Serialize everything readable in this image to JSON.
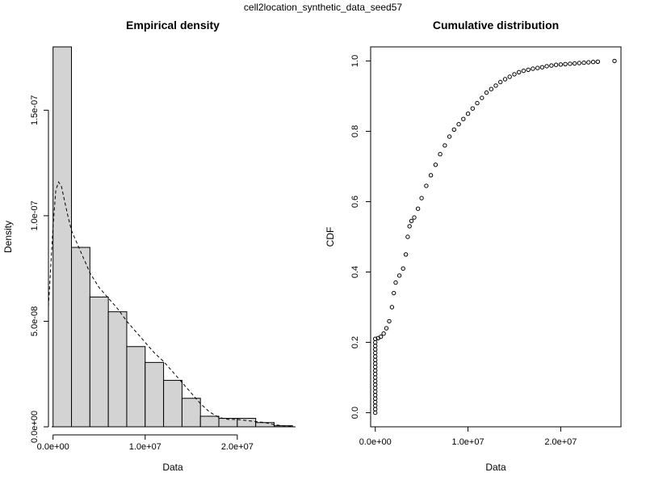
{
  "figure": {
    "main_title": "cell2location_synthetic_data_seed57"
  },
  "chart_data": [
    {
      "type": "bar",
      "title": "Empirical density",
      "xlabel": "Data",
      "ylabel": "Density",
      "xlim": [
        -500000,
        26500000
      ],
      "ylim": [
        0,
        1.8e-07
      ],
      "x_ticks": [
        0,
        10000000,
        20000000
      ],
      "x_tick_labels": [
        "0.0e+00",
        "1.0e+07",
        "2.0e+07"
      ],
      "y_ticks": [
        0,
        5e-08,
        1e-07,
        1.5e-07
      ],
      "y_tick_labels": [
        "0.0e+00",
        "5.0e-08",
        "1.0e-07",
        "1.5e-07"
      ],
      "bin_edges": [
        0,
        2000000,
        4000000,
        6000000,
        8000000,
        10000000,
        12000000,
        14000000,
        16000000,
        18000000,
        20000000,
        22000000,
        24000000,
        26000000
      ],
      "values": [
        1.8e-07,
        8.5e-08,
        6.15e-08,
        5.45e-08,
        3.8e-08,
        3.05e-08,
        2.2e-08,
        1.35e-08,
        5e-09,
        4e-09,
        4e-09,
        2e-09,
        5e-10
      ],
      "bar_color": "#d3d3d3",
      "density_curve": {
        "line_style": "dashed",
        "x": [
          -500000,
          0,
          300000,
          600000,
          900000,
          1200000,
          1600000,
          2000000,
          2500000,
          3000000,
          3500000,
          4000000,
          5000000,
          6000000,
          7000000,
          8000000,
          9000000,
          10000000,
          11000000,
          12000000,
          13000000,
          14000000,
          15000000,
          16000000,
          17000000,
          18000000,
          19000000,
          20000000,
          21000000,
          22000000,
          23000000,
          24000000,
          25000000,
          26000000
        ],
        "y": [
          5.7e-08,
          9.5e-08,
          1.12e-07,
          1.16e-07,
          1.14e-07,
          1.08e-07,
          1e-07,
          9.3e-08,
          8.8e-08,
          8.3e-08,
          7.8e-08,
          7.3e-08,
          6.6e-08,
          6.1e-08,
          5.6e-08,
          5e-08,
          4.5e-08,
          4e-08,
          3.5e-08,
          3.1e-08,
          2.6e-08,
          2.1e-08,
          1.6e-08,
          1.1e-08,
          7e-09,
          4.5e-09,
          3.5e-09,
          3.5e-09,
          3e-09,
          2.5e-09,
          2e-09,
          1e-09,
          5e-10,
          2e-10
        ]
      }
    },
    {
      "type": "scatter",
      "title": "Cumulative distribution",
      "xlabel": "Data",
      "ylabel": "CDF",
      "xlim": [
        -500000,
        26500000
      ],
      "ylim": [
        0,
        1
      ],
      "x_ticks": [
        0,
        10000000,
        20000000
      ],
      "x_tick_labels": [
        "0.0e+00",
        "1.0e+07",
        "2.0e+07"
      ],
      "y_ticks": [
        0,
        0.2,
        0.4,
        0.6,
        0.8,
        1.0
      ],
      "y_tick_labels": [
        "0.0",
        "0.2",
        "0.4",
        "0.6",
        "0.8",
        "1.0"
      ],
      "marker": "open-circle",
      "x": [
        0,
        0,
        0,
        0,
        0,
        0,
        0,
        0,
        0,
        0,
        0,
        0,
        0,
        0,
        0,
        0,
        0,
        0,
        0,
        0,
        0,
        0,
        300000,
        600000,
        900000,
        1200000,
        1500000,
        1800000,
        2000000,
        2200000,
        2600000,
        3000000,
        3300000,
        3500000,
        3700000,
        3900000,
        4200000,
        4600000,
        5000000,
        5500000,
        6000000,
        6500000,
        7000000,
        7500000,
        8000000,
        8500000,
        9000000,
        9500000,
        10000000,
        10500000,
        11000000,
        11500000,
        12000000,
        12500000,
        13000000,
        13500000,
        14000000,
        14500000,
        15000000,
        15500000,
        16000000,
        16500000,
        17000000,
        17500000,
        18000000,
        18500000,
        19000000,
        19500000,
        20000000,
        20500000,
        21000000,
        21500000,
        22000000,
        22500000,
        23000000,
        23500000,
        24000000,
        25800000
      ],
      "y": [
        0,
        0.01,
        0.02,
        0.03,
        0.04,
        0.05,
        0.06,
        0.07,
        0.08,
        0.09,
        0.1,
        0.11,
        0.12,
        0.13,
        0.14,
        0.15,
        0.16,
        0.17,
        0.18,
        0.19,
        0.2,
        0.21,
        0.212,
        0.216,
        0.225,
        0.24,
        0.26,
        0.3,
        0.34,
        0.37,
        0.39,
        0.41,
        0.45,
        0.5,
        0.53,
        0.545,
        0.555,
        0.58,
        0.61,
        0.645,
        0.675,
        0.705,
        0.735,
        0.76,
        0.785,
        0.805,
        0.82,
        0.835,
        0.85,
        0.865,
        0.88,
        0.895,
        0.91,
        0.92,
        0.93,
        0.94,
        0.948,
        0.955,
        0.962,
        0.968,
        0.972,
        0.975,
        0.978,
        0.98,
        0.982,
        0.985,
        0.987,
        0.989,
        0.99,
        0.991,
        0.992,
        0.993,
        0.994,
        0.995,
        0.996,
        0.997,
        0.998,
        1.0
      ]
    }
  ]
}
